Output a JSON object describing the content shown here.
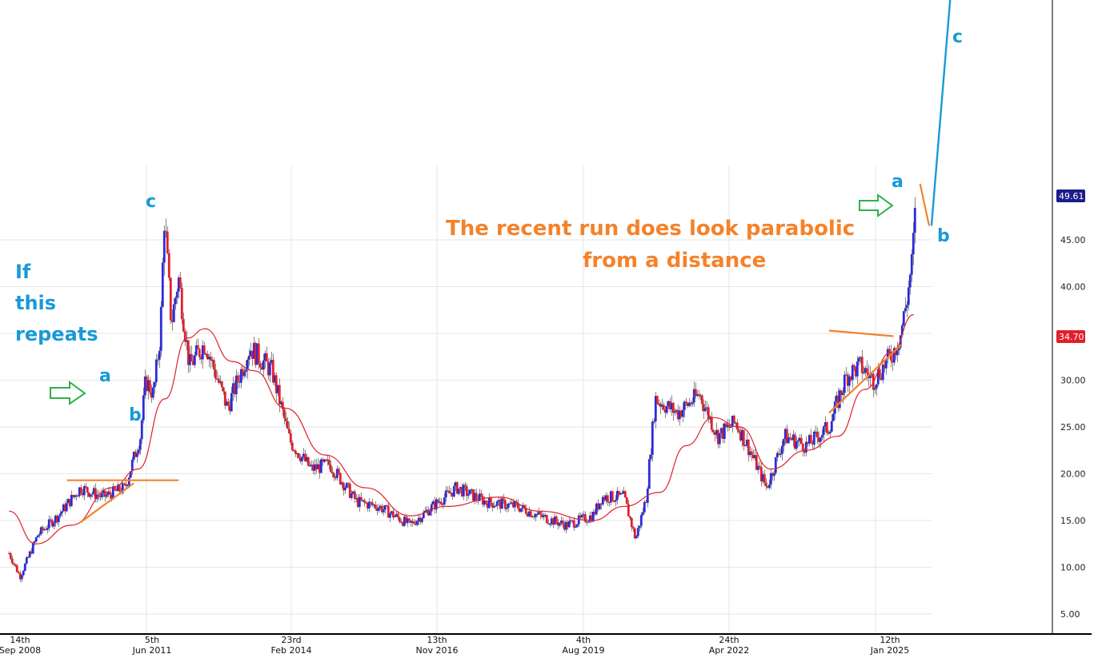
{
  "colors": {
    "up": "#2b2bd9",
    "down": "#e0202a",
    "ma": "#e0202a",
    "annotation_orange": "#f5822a",
    "wave_blue": "#1a9ad6",
    "arrow_green": "#2bb34a",
    "grid": "#e6e6e6",
    "last_price_badge": "#1c1c8c",
    "level_badge": "#e0202a"
  },
  "annotations": {
    "parabolic_line1": "The recent run does look parabolic",
    "parabolic_line2": "from a distance",
    "repeat_line1": "If",
    "repeat_line2": "this",
    "repeat_line3": "repeats"
  },
  "wave_labels": {
    "left_a": "a",
    "left_b": "b",
    "left_c": "c",
    "right_a": "a",
    "right_b": "b",
    "right_c": "c"
  },
  "price_badges": {
    "last": "49.61",
    "level": "34.70"
  },
  "chart_data": {
    "type": "candlestick",
    "title": "",
    "xlabel": "",
    "ylabel": "",
    "ylim": [
      2.5,
      55
    ],
    "grid": true,
    "y_ticks": [
      "5.00",
      "10.00",
      "15.00",
      "20.00",
      "25.00",
      "30.00",
      "35.00",
      "40.00",
      "45.00"
    ],
    "x_ticks": [
      {
        "day": "14th",
        "month_year": "Sep 2008"
      },
      {
        "day": "5th",
        "month_year": "Jun 2011"
      },
      {
        "day": "23rd",
        "month_year": "Feb 2014"
      },
      {
        "day": "13th",
        "month_year": "Nov 2016"
      },
      {
        "day": "4th",
        "month_year": "Aug 2019"
      },
      {
        "day": "24th",
        "month_year": "Apr 2022"
      },
      {
        "day": "12th",
        "month_year": "Jan 2025"
      }
    ],
    "price_path": [
      [
        "2008-07-01",
        11.5
      ],
      [
        "2008-09-14",
        9.0
      ],
      [
        "2009-01-15",
        13.5
      ],
      [
        "2009-06-01",
        15.5
      ],
      [
        "2009-11-01",
        18.5
      ],
      [
        "2010-04-01",
        17.5
      ],
      [
        "2010-09-01",
        18.5
      ],
      [
        "2010-12-15",
        24.0
      ],
      [
        "2011-01-20",
        30.0
      ],
      [
        "2011-03-15",
        28.5
      ],
      [
        "2011-05-01",
        35.0
      ],
      [
        "2011-05-28",
        47.5
      ],
      [
        "2011-07-15",
        36.0
      ],
      [
        "2011-09-01",
        41.0
      ],
      [
        "2011-11-15",
        31.5
      ],
      [
        "2012-03-01",
        34.0
      ],
      [
        "2012-08-01",
        27.0
      ],
      [
        "2013-01-01",
        33.5
      ],
      [
        "2013-06-01",
        31.0
      ],
      [
        "2013-10-01",
        23.5
      ],
      [
        "2014-02-23",
        20.5
      ],
      [
        "2014-07-01",
        21.0
      ],
      [
        "2015-01-01",
        17.0
      ],
      [
        "2015-06-01",
        16.5
      ],
      [
        "2016-01-01",
        14.5
      ],
      [
        "2016-06-01",
        16.5
      ],
      [
        "2016-11-13",
        18.5
      ],
      [
        "2017-06-01",
        17.0
      ],
      [
        "2018-01-01",
        16.5
      ],
      [
        "2018-06-01",
        15.5
      ],
      [
        "2018-12-01",
        14.5
      ],
      [
        "2019-06-01",
        15.5
      ],
      [
        "2019-08-04",
        17.5
      ],
      [
        "2020-01-01",
        17.5
      ],
      [
        "2020-03-20",
        13.0
      ],
      [
        "2020-06-01",
        17.5
      ],
      [
        "2020-08-01",
        28.0
      ],
      [
        "2021-01-01",
        26.5
      ],
      [
        "2021-06-01",
        28.5
      ],
      [
        "2021-10-01",
        24.0
      ],
      [
        "2022-02-01",
        25.5
      ],
      [
        "2022-04-24",
        23.0
      ],
      [
        "2022-09-01",
        18.5
      ],
      [
        "2023-01-01",
        24.0
      ],
      [
        "2023-06-01",
        23.0
      ],
      [
        "2023-11-01",
        25.0
      ],
      [
        "2024-03-01",
        30.5
      ],
      [
        "2024-06-01",
        31.5
      ],
      [
        "2024-09-01",
        30.0
      ],
      [
        "2024-12-01",
        32.0
      ],
      [
        "2025-01-12",
        33.0
      ],
      [
        "2025-03-01",
        34.7
      ],
      [
        "2025-04-15",
        38.5
      ],
      [
        "2025-05-20",
        42.5
      ],
      [
        "2025-06-20",
        49.61
      ]
    ],
    "moving_average": [
      [
        "2008-07-01",
        16.0
      ],
      [
        "2009-01-01",
        12.5
      ],
      [
        "2009-09-01",
        14.5
      ],
      [
        "2010-06-01",
        18.5
      ],
      [
        "2010-12-01",
        20.5
      ],
      [
        "2011-06-01",
        28.0
      ],
      [
        "2011-11-01",
        34.5
      ],
      [
        "2012-03-01",
        35.5
      ],
      [
        "2012-09-01",
        32.0
      ],
      [
        "2013-02-01",
        31.0
      ],
      [
        "2013-09-01",
        27.0
      ],
      [
        "2014-06-01",
        22.0
      ],
      [
        "2015-03-01",
        18.5
      ],
      [
        "2016-01-01",
        15.5
      ],
      [
        "2016-09-01",
        16.5
      ],
      [
        "2017-09-01",
        17.5
      ],
      [
        "2018-06-01",
        16.0
      ],
      [
        "2019-06-01",
        15.0
      ],
      [
        "2020-01-01",
        16.5
      ],
      [
        "2020-09-01",
        18.0
      ],
      [
        "2021-03-01",
        23.0
      ],
      [
        "2021-09-01",
        26.0
      ],
      [
        "2022-03-01",
        25.0
      ],
      [
        "2022-10-01",
        20.5
      ],
      [
        "2023-06-01",
        22.5
      ],
      [
        "2024-01-01",
        24.0
      ],
      [
        "2024-07-01",
        29.0
      ],
      [
        "2025-01-01",
        33.0
      ],
      [
        "2025-06-01",
        37.0
      ]
    ],
    "projection": {
      "b_to_c_start": [
        "2025-10-01",
        46.5
      ],
      "b_to_c_end": [
        "2026-04-01",
        81.0
      ]
    },
    "trendlines": [
      {
        "name": "left_resistance",
        "from": [
          "2009-08-01",
          19.3
        ],
        "to": [
          "2011-09-01",
          19.3
        ]
      },
      {
        "name": "left_support",
        "from": [
          "2009-11-01",
          14.8
        ],
        "to": [
          "2010-11-01",
          19.0
        ]
      },
      {
        "name": "right_resistance",
        "from": [
          "2023-11-01",
          35.3
        ],
        "to": [
          "2025-01-15",
          34.7
        ]
      },
      {
        "name": "right_support",
        "from": [
          "2023-11-01",
          26.5
        ],
        "to": [
          "2025-03-10",
          33.8
        ]
      },
      {
        "name": "right_b_drop",
        "from": [
          "2025-07-15",
          51.0
        ],
        "to": [
          "2025-09-15",
          46.5
        ]
      }
    ],
    "last_price": 49.61,
    "level": 34.7
  }
}
